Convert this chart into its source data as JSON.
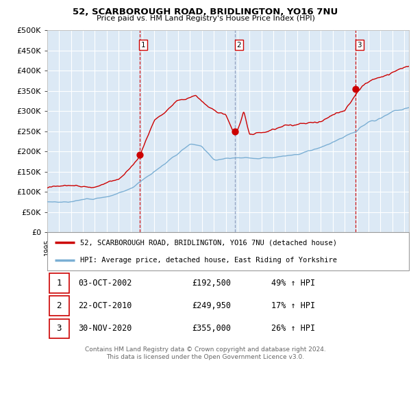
{
  "title": "52, SCARBOROUGH ROAD, BRIDLINGTON, YO16 7NU",
  "subtitle": "Price paid vs. HM Land Registry's House Price Index (HPI)",
  "legend_line1": "52, SCARBOROUGH ROAD, BRIDLINGTON, YO16 7NU (detached house)",
  "legend_line2": "HPI: Average price, detached house, East Riding of Yorkshire",
  "footer1": "Contains HM Land Registry data © Crown copyright and database right 2024.",
  "footer2": "This data is licensed under the Open Government Licence v3.0.",
  "sales": [
    {
      "label": "1",
      "date": "03-OCT-2002",
      "price": "£192,500",
      "pct": "49% ↑ HPI",
      "x_year": 2002.75,
      "y_val": 192500
    },
    {
      "label": "2",
      "date": "22-OCT-2010",
      "price": "£249,950",
      "pct": "17% ↑ HPI",
      "x_year": 2010.8,
      "y_val": 249950
    },
    {
      "label": "3",
      "date": "30-NOV-2020",
      "price": "£355,000",
      "pct": "26% ↑ HPI",
      "x_year": 2020.92,
      "y_val": 355000
    }
  ],
  "ylim": [
    0,
    500000
  ],
  "yticks": [
    0,
    50000,
    100000,
    150000,
    200000,
    250000,
    300000,
    350000,
    400000,
    450000,
    500000
  ],
  "xlim_start": 1995,
  "xlim_end": 2025.4,
  "bg_color": "#dce9f5",
  "grid_color": "#ffffff",
  "red_line_color": "#cc0000",
  "blue_line_color": "#7bafd4",
  "sale_dot_color": "#cc0000",
  "vline1_color": "#cc0000",
  "vline2_color": "#8899bb",
  "vline3_color": "#cc0000"
}
